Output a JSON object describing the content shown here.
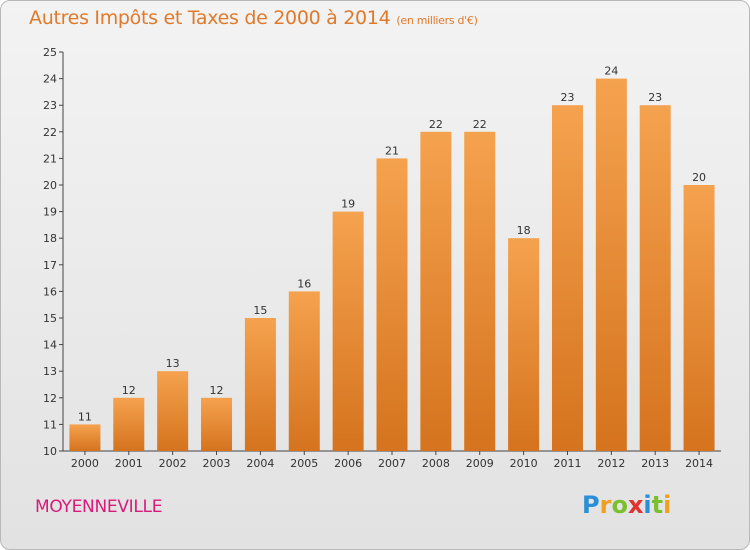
{
  "title": "Autres Impôts et Taxes de 2000 à 2014",
  "unit": "(en milliers d'€)",
  "city": "MOYENNEVILLE",
  "logo": {
    "letters": [
      "P",
      "r",
      "o",
      "x",
      "i",
      "t",
      "i"
    ],
    "colors": [
      "#2a8fd6",
      "#f0a020",
      "#7cbf2e",
      "#e0322f",
      "#2a8fd6",
      "#7cbf2e",
      "#f0a020"
    ]
  },
  "colors": {
    "bar_top": "#f5a24e",
    "bar_bottom": "#d5731e",
    "title": "#e07a2a",
    "city": "#d81b7a"
  },
  "chart_data": {
    "type": "bar",
    "categories": [
      "2000",
      "2001",
      "2002",
      "2003",
      "2004",
      "2005",
      "2006",
      "2007",
      "2008",
      "2009",
      "2010",
      "2011",
      "2012",
      "2013",
      "2014"
    ],
    "values": [
      11,
      12,
      13,
      12,
      15,
      16,
      19,
      21,
      22,
      22,
      18,
      23,
      24,
      23,
      20
    ],
    "ylim": [
      10,
      25
    ],
    "yticks": [
      "10",
      "11",
      "12",
      "13",
      "14",
      "15",
      "16",
      "17",
      "18",
      "19",
      "20",
      "21",
      "22",
      "23",
      "24",
      "25"
    ],
    "grid": false
  }
}
